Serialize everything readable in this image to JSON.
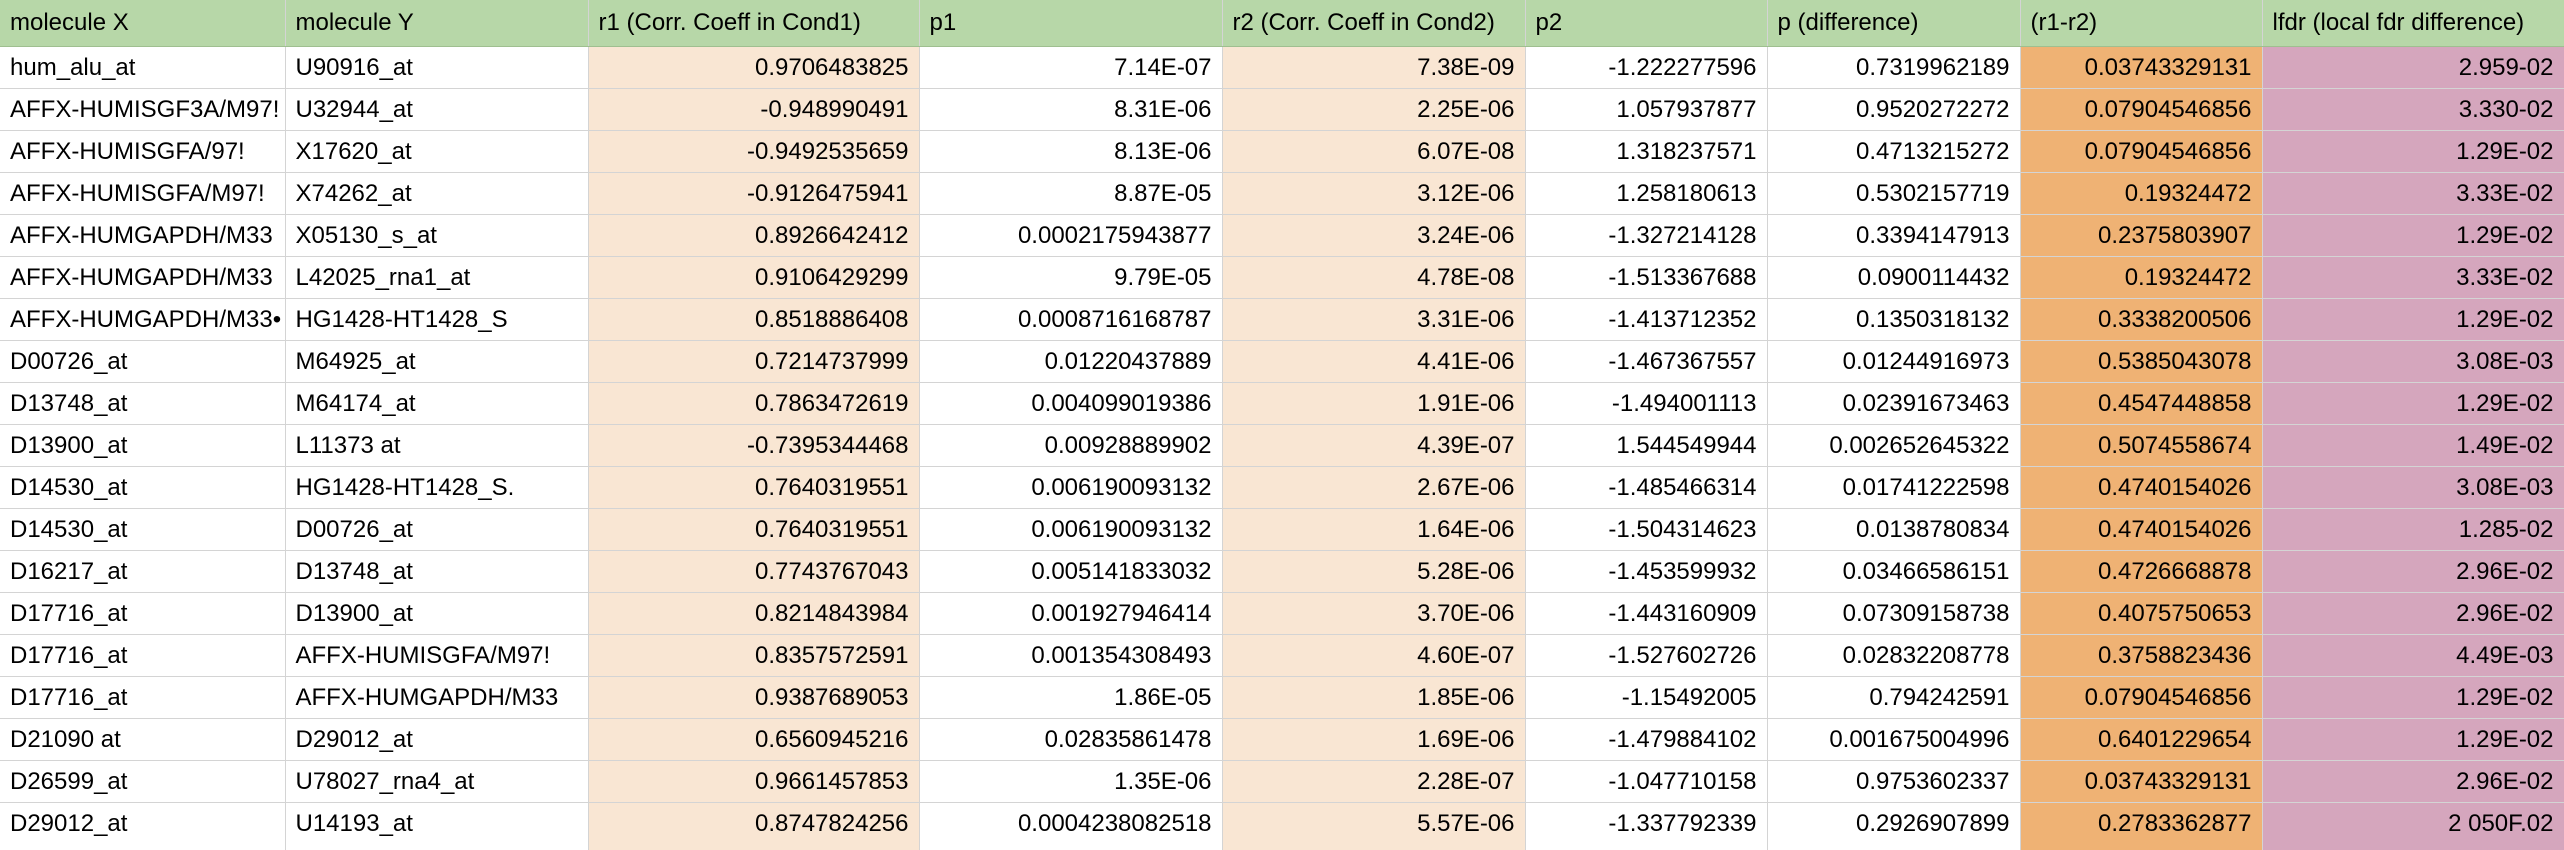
{
  "colors": {
    "header_bg": "#b7d7a8",
    "r_columns_bg": "#f9e6d3",
    "diff_column_bg": "#efb274",
    "lfdr_column_bg": "#d5a6bd"
  },
  "headers": [
    "molecule X",
    "molecule Y",
    "r1 (Corr. Coeff in Cond1)",
    "p1",
    "r2 (Corr. Coeff in Cond2)",
    "p2",
    "p (difference)",
    "(r1-r2)",
    "lfdr (local fdr difference)"
  ],
  "rows": [
    [
      "hum_alu_at",
      "U90916_at",
      "0.9706483825",
      "7.14E-07",
      "7.38E-09",
      "-1.222277596",
      "0.7319962189",
      "0.03743329131",
      "2.959-02"
    ],
    [
      "AFFX-HUMISGF3A/M97!",
      "U32944_at",
      "-0.948990491",
      "8.31E-06",
      "2.25E-06",
      "1.057937877",
      "0.9520272272",
      "0.07904546856",
      "3.330-02"
    ],
    [
      "AFFX-HUMISGFA/97!",
      "X17620_at",
      "-0.9492535659",
      "8.13E-06",
      "6.07E-08",
      "1.318237571",
      "0.4713215272",
      "0.07904546856",
      "1.29E-02"
    ],
    [
      "AFFX-HUMISGFA/M97!",
      "X74262_at",
      "-0.9126475941",
      "8.87E-05",
      "3.12E-06",
      "1.258180613",
      "0.5302157719",
      "0.19324472",
      "3.33E-02"
    ],
    [
      "AFFX-HUMGAPDH/M33",
      "X05130_s_at",
      "0.8926642412",
      "0.0002175943877",
      "3.24E-06",
      "-1.327214128",
      "0.3394147913",
      "0.2375803907",
      "1.29E-02"
    ],
    [
      "AFFX-HUMGAPDH/M33",
      "L42025_rna1_at",
      "0.9106429299",
      "9.79E-05",
      "4.78E-08",
      "-1.513367688",
      "0.0900114432",
      "0.19324472",
      "3.33E-02"
    ],
    [
      "AFFX-HUMGAPDH/M33•",
      "HG1428-HT1428_S",
      "0.8518886408",
      "0.0008716168787",
      "3.31E-06",
      "-1.413712352",
      "0.1350318132",
      "0.3338200506",
      "1.29E-02"
    ],
    [
      "D00726_at",
      "M64925_at",
      "0.7214737999",
      "0.01220437889",
      "4.41E-06",
      "-1.467367557",
      "0.01244916973",
      "0.5385043078",
      "3.08E-03"
    ],
    [
      "D13748_at",
      "M64174_at",
      "0.7863472619",
      "0.004099019386",
      "1.91E-06",
      "-1.494001113",
      "0.02391673463",
      "0.4547448858",
      "1.29E-02"
    ],
    [
      "D13900_at",
      "L11373 at",
      "-0.7395344468",
      "0.00928889902",
      "4.39E-07",
      "1.544549944",
      "0.002652645322",
      "0.5074558674",
      "1.49E-02"
    ],
    [
      "D14530_at",
      "HG1428-HT1428_S.",
      "0.7640319551",
      "0.006190093132",
      "2.67E-06",
      "-1.485466314",
      "0.01741222598",
      "0.4740154026",
      "3.08E-03"
    ],
    [
      "D14530_at",
      "D00726_at",
      "0.7640319551",
      "0.006190093132",
      "1.64E-06",
      "-1.504314623",
      "0.0138780834",
      "0.4740154026",
      "1.285-02"
    ],
    [
      "D16217_at",
      "D13748_at",
      "0.7743767043",
      "0.005141833032",
      "5.28E-06",
      "-1.453599932",
      "0.03466586151",
      "0.4726668878",
      "2.96E-02"
    ],
    [
      "D17716_at",
      "D13900_at",
      "0.8214843984",
      "0.001927946414",
      "3.70E-06",
      "-1.443160909",
      "0.07309158738",
      "0.4075750653",
      "2.96E-02"
    ],
    [
      "D17716_at",
      "AFFX-HUMISGFA/M97!",
      "0.8357572591",
      "0.001354308493",
      "4.60E-07",
      "-1.527602726",
      "0.02832208778",
      "0.3758823436",
      "4.49E-03"
    ],
    [
      "D17716_at",
      "AFFX-HUMGAPDH/M33",
      "0.9387689053",
      "1.86E-05",
      "1.85E-06",
      "-1.15492005",
      "0.794242591",
      "0.07904546856",
      "1.29E-02"
    ],
    [
      "D21090 at",
      "D29012_at",
      "0.6560945216",
      "0.02835861478",
      "1.69E-06",
      "-1.479884102",
      "0.001675004996",
      "0.6401229654",
      "1.29E-02"
    ],
    [
      "D26599_at",
      "U78027_rna4_at",
      "0.9661457853",
      "1.35E-06",
      "2.28E-07",
      "-1.047710158",
      "0.9753602337",
      "0.03743329131",
      "2.96E-02"
    ],
    [
      "D29012_at",
      "U14193_at",
      "0.8747824256",
      "0.0004238082518",
      "5.57E-06",
      "-1.337792339",
      "0.2926907899",
      "0.2783362877",
      "2 050F.02"
    ]
  ]
}
